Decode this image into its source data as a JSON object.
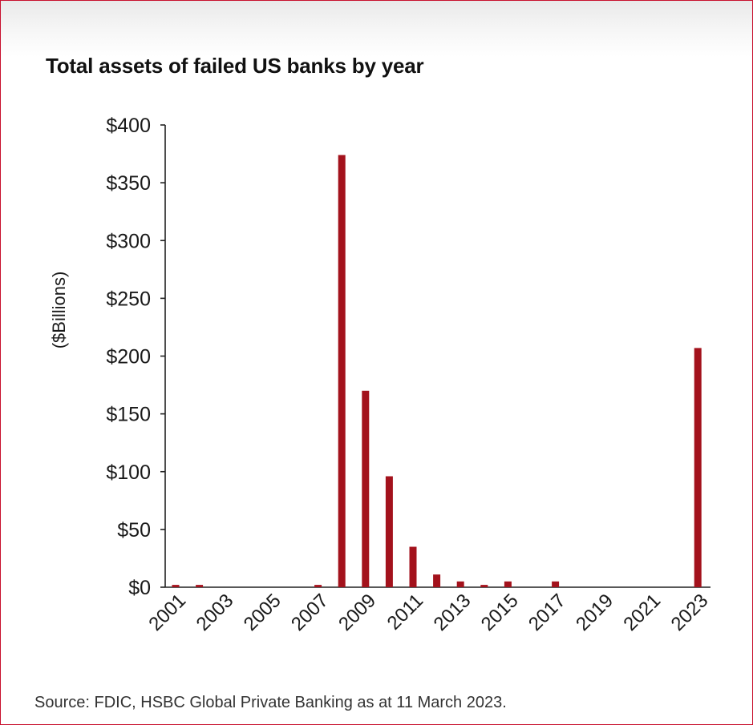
{
  "chart_data": {
    "type": "bar",
    "title": "Total assets of failed US banks by year",
    "ylabel": "($Billions)",
    "xlabel": "",
    "source": "Source: FDIC, HSBC Global Private Banking as at 11 March 2023.",
    "ylim": [
      0,
      400
    ],
    "yticks": [
      "$0",
      "$50",
      "$100",
      "$150",
      "$200",
      "$250",
      "$300",
      "$350",
      "$400"
    ],
    "ytick_values": [
      0,
      50,
      100,
      150,
      200,
      250,
      300,
      350,
      400
    ],
    "xtick_labels": [
      "2001",
      "2003",
      "2005",
      "2007",
      "2009",
      "2011",
      "2013",
      "2015",
      "2017",
      "2019",
      "2021",
      "2023"
    ],
    "categories": [
      "2001",
      "2002",
      "2003",
      "2004",
      "2005",
      "2006",
      "2007",
      "2008",
      "2009",
      "2010",
      "2011",
      "2012",
      "2013",
      "2014",
      "2015",
      "2016",
      "2017",
      "2018",
      "2019",
      "2020",
      "2021",
      "2022",
      "2023"
    ],
    "values": [
      2,
      2,
      0,
      0,
      0,
      0,
      2,
      374,
      170,
      96,
      35,
      11,
      5,
      2,
      5,
      0,
      5,
      0,
      0,
      0,
      0,
      0,
      207
    ],
    "bar_color": "#a3121c",
    "grid": false,
    "legend": "none"
  }
}
